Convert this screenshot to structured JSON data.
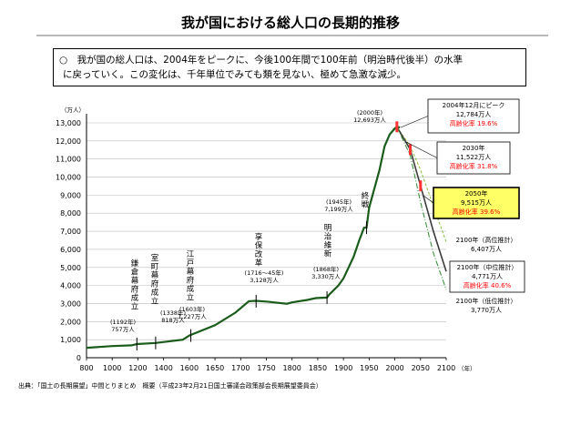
{
  "title": "我が国における総人口の長期的推移",
  "summary_line1": "○　我が国の総人口は、2004年をピークに、今後100年間で100年前（明治時代後半）の水準",
  "summary_line2": "に戻っていく。この変化は、千年単位でみても類を見ない、極めて急激な減少。",
  "source": "出典：「国土の長期展望」中間とりまとめ　概要（平成23年2月21日国土審議会政策部会長期展望委員会）",
  "chart_data": {
    "type": "line",
    "y_unit": "（万人）",
    "x_unit": "（年）",
    "xlim": [
      800,
      2100
    ],
    "ylim": [
      0,
      13000
    ],
    "x_ticks": [
      800,
      1000,
      1200,
      1400,
      1600,
      1650,
      1700,
      1750,
      1800,
      1850,
      1900,
      1950,
      2000,
      2050,
      2100
    ],
    "y_ticks": [
      0,
      1000,
      2000,
      3000,
      4000,
      5000,
      6000,
      7000,
      8000,
      9000,
      10000,
      11000,
      12000,
      13000
    ],
    "historical": {
      "x": [
        800,
        1000,
        1150,
        1192,
        1338,
        1550,
        1600,
        1650,
        1690,
        1716,
        1730,
        1750,
        1790,
        1800,
        1830,
        1846,
        1868,
        1872,
        1890,
        1900,
        1920,
        1930,
        1940,
        1945,
        1950,
        1960,
        1970,
        1980,
        1990,
        2000,
        2004,
        2010
      ],
      "y": [
        551,
        644,
        684,
        757,
        818,
        1000,
        1227,
        1800,
        2500,
        3128,
        3150,
        3110,
        2990,
        3065,
        3200,
        3300,
        3330,
        3480,
        3990,
        4385,
        5596,
        6445,
        7193,
        7199,
        8320,
        9342,
        10372,
        11706,
        12361,
        12693,
        12784,
        12745
      ]
    },
    "projections": [
      {
        "name": "2100年（高位推計）",
        "x": [
          2004,
          2030,
          2050,
          2075,
          2100
        ],
        "y": [
          12784,
          11700,
          10400,
          8400,
          6407
        ]
      },
      {
        "name": "2100年（中位推計）",
        "x": [
          2004,
          2030,
          2050,
          2075,
          2100
        ],
        "y": [
          12784,
          11522,
          9515,
          7000,
          4771
        ]
      },
      {
        "name": "2100年（低位推計）",
        "x": [
          2004,
          2030,
          2050,
          2075,
          2100
        ],
        "y": [
          12784,
          11200,
          8600,
          5800,
          3770
        ]
      }
    ],
    "era_labels": [
      {
        "label": "鎌倉幕府成立",
        "x": 1192
      },
      {
        "label": "室町幕府成立",
        "x": 1338
      },
      {
        "label": "江戸幕府成立",
        "x": 1603
      },
      {
        "label": "享保改革",
        "x": 1730
      },
      {
        "label": "明治維新",
        "x": 1868
      },
      {
        "label": "終戦",
        "x": 1945
      }
    ],
    "point_annotations": [
      {
        "year_label": "(1192年)",
        "value_label": "757万人",
        "x": 1192,
        "y": 757
      },
      {
        "year_label": "(1338年)",
        "value_label": "818万人",
        "x": 1338,
        "y": 818
      },
      {
        "year_label": "(1603年)",
        "value_label": "1,227万人",
        "x": 1603,
        "y": 1227
      },
      {
        "year_label": "(1716～45年)",
        "value_label": "3,128万人",
        "x": 1730,
        "y": 3128
      },
      {
        "year_label": "(1868年)",
        "value_label": "3,330万人",
        "x": 1868,
        "y": 3330
      },
      {
        "year_label": "(1945年)",
        "value_label": "7,199万人",
        "x": 1945,
        "y": 7199
      },
      {
        "year_label": "(2000年)",
        "value_label": "12,693万人",
        "x": 2000,
        "y": 12693
      }
    ],
    "callouts": [
      {
        "lines": [
          "2004年12月にピーク",
          "12,784万人",
          "高齢化率 19.6%"
        ],
        "red_line": 2
      },
      {
        "lines": [
          "2030年",
          "11,522万人",
          "高齢化率 31.8%"
        ],
        "red_line": 2
      },
      {
        "lines": [
          "2050年",
          "9,515万人",
          "高齢化率 39.6%"
        ],
        "red_line": 2
      },
      {
        "lines": [
          "2100年（高位推計）",
          "6,407万人"
        ]
      },
      {
        "lines": [
          "2100年（中位推計）",
          "4,771万人",
          "高齢化率 40.6%"
        ],
        "red_line": 2
      },
      {
        "lines": [
          "2100年（低位推計）",
          "3,770万人"
        ]
      }
    ],
    "colors": {
      "historical": "#1a5c1a",
      "high": "#8cbf3a",
      "mid": "#3c3c3c",
      "low": "#2e8b2e",
      "highlight_fill": "#ffff66",
      "marker": "#ff3333",
      "grid": "#bbbbbb"
    }
  }
}
